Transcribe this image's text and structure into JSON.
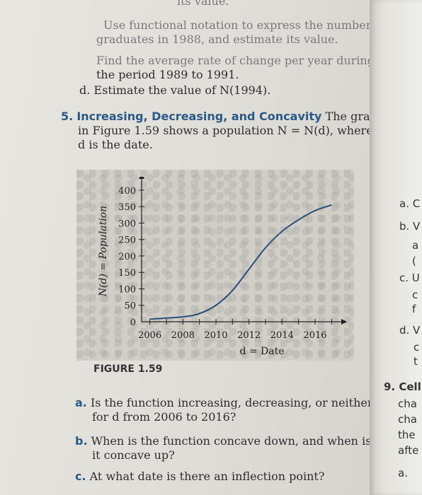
{
  "top_fragment": "its value.",
  "items": {
    "b": {
      "text1": "Use functional notation to express the number of",
      "text2": "graduates in 1988, and estimate its value."
    },
    "c": {
      "text1": "Find the average rate of change per year during",
      "text2": "the period 1989 to 1991."
    },
    "d": {
      "label": "d.",
      "text": "Estimate the value of N(1994)."
    }
  },
  "problem5": {
    "number": "5.",
    "heading": "Increasing, Decreasing, and Concavity",
    "line1": "The graph",
    "line2": "in Figure 1.59 shows a population N = N(d), where",
    "line3": "d is the date."
  },
  "figure": {
    "label": "FIGURE 1.59"
  },
  "chart_data": {
    "type": "line",
    "xlabel": "d = Date",
    "ylabel": "N(d) = Population",
    "x_ticks": [
      2006,
      2008,
      2010,
      2012,
      2014,
      2016
    ],
    "y_ticks": [
      0,
      50,
      100,
      150,
      200,
      250,
      300,
      350,
      400
    ],
    "xlim": [
      2005.5,
      2017.5
    ],
    "ylim": [
      0,
      430
    ],
    "series": [
      {
        "x": [
          2006,
          2008,
          2009,
          2010,
          2011,
          2012,
          2013,
          2014,
          2015,
          2016,
          2017
        ],
        "y": [
          8,
          15,
          25,
          50,
          95,
          160,
          225,
          275,
          310,
          338,
          355
        ]
      }
    ]
  },
  "questions": [
    {
      "label": "a.",
      "line1": "Is the function increasing, decreasing, or neither",
      "line2": "for d from 2006 to 2016?"
    },
    {
      "label": "b.",
      "line1": "When is the function concave down, and when is",
      "line2": "it concave up?"
    },
    {
      "label": "c.",
      "line1": "At what date is there an inflection point?"
    }
  ],
  "right_strip": {
    "labels": [
      "a. C",
      "b. V",
      "a",
      "(",
      "c. U",
      "c",
      "f",
      "d. V",
      "c",
      "t",
      "9. Cell",
      "cha",
      "cha",
      "the",
      "afte",
      "a."
    ]
  }
}
